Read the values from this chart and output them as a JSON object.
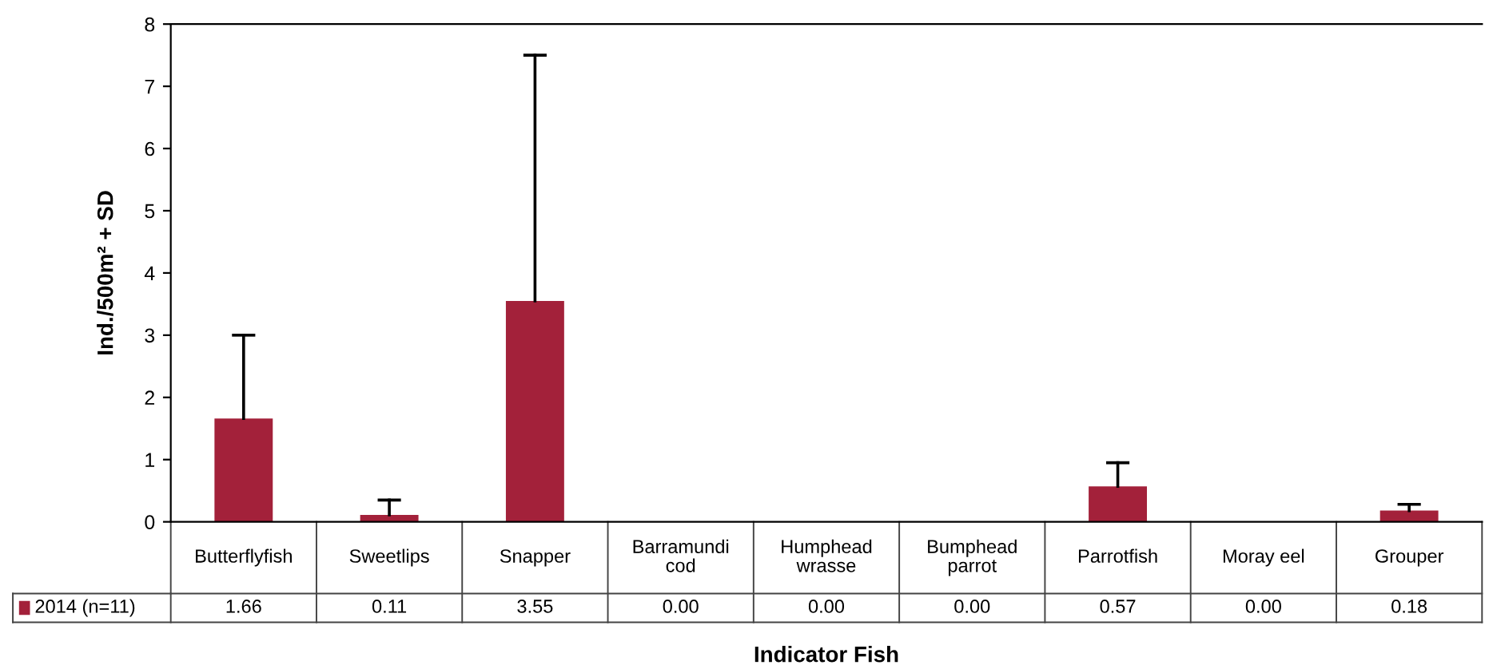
{
  "chart_data": {
    "type": "bar",
    "xlabel": "Indicator Fish",
    "ylabel": "Ind./500m² + SD",
    "categories": [
      "Butterflyfish",
      "Sweetlips",
      "Snapper",
      "Barramundi cod",
      "Humphead wrasse",
      "Bumphead parrot",
      "Parrotfish",
      "Moray eel",
      "Grouper"
    ],
    "series": [
      {
        "name": "2014 (n=11)",
        "color": "#a3213a",
        "values": [
          1.66,
          0.11,
          3.55,
          0.0,
          0.0,
          0.0,
          0.57,
          0.0,
          0.18
        ],
        "value_labels": [
          "1.66",
          "0.11",
          "3.55",
          "0.00",
          "0.00",
          "0.00",
          "0.57",
          "0.00",
          "0.18"
        ],
        "errors": [
          [
            1.66,
            3.0
          ],
          [
            0.11,
            0.35
          ],
          [
            3.55,
            7.5
          ],
          null,
          null,
          null,
          [
            0.57,
            0.95
          ],
          null,
          [
            0.18,
            0.28
          ]
        ]
      }
    ],
    "ylim": [
      0,
      8
    ],
    "yticks": [
      0,
      1,
      2,
      3,
      4,
      5,
      6,
      7,
      8
    ],
    "grid": false,
    "legend": "bottom left"
  }
}
